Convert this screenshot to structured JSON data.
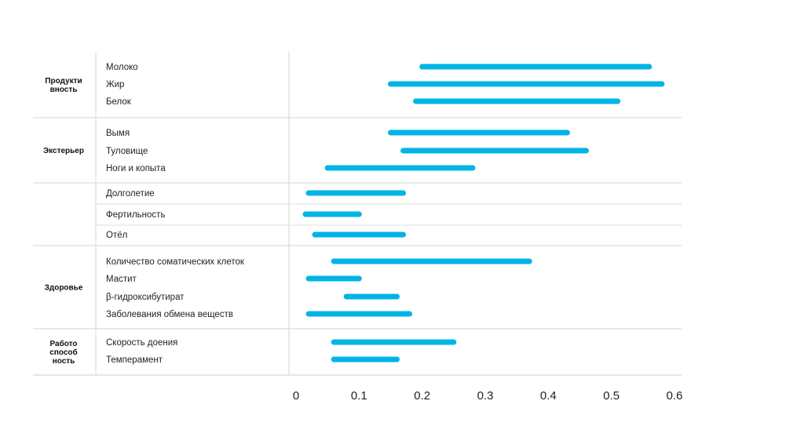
{
  "chart_data": {
    "type": "bar",
    "subtype": "floating-range",
    "title": "",
    "xlabel": "",
    "ylabel": "",
    "xlim": [
      0,
      0.6
    ],
    "xticks": [
      "0",
      "0.1",
      "0.2",
      "0.3",
      "0.4",
      "0.5",
      "0.6"
    ],
    "bar_color": "#00b4e6",
    "grid": false,
    "groups": [
      {
        "label_lines": [
          "Продукти",
          "вность"
        ],
        "items": [
          {
            "label": "Молоко",
            "low": 0.2,
            "high": 0.56
          },
          {
            "label": "Жир",
            "low": 0.15,
            "high": 0.58
          },
          {
            "label": "Белок",
            "low": 0.19,
            "high": 0.51
          }
        ]
      },
      {
        "label_lines": [
          "Экстерьер"
        ],
        "items": [
          {
            "label": "Вымя",
            "low": 0.15,
            "high": 0.43
          },
          {
            "label": "Туловище",
            "low": 0.17,
            "high": 0.46
          },
          {
            "label": "Ноги и копыта",
            "low": 0.05,
            "high": 0.28
          }
        ]
      },
      {
        "label_lines": [],
        "items": [
          {
            "label": "Долголетие",
            "low": 0.02,
            "high": 0.17
          },
          {
            "label": "Фертильность",
            "low": 0.015,
            "high": 0.1
          },
          {
            "label": "Отёл",
            "low": 0.03,
            "high": 0.17
          }
        ]
      },
      {
        "label_lines": [
          "Здоровье"
        ],
        "items": [
          {
            "label": "Количество соматических клеток",
            "low": 0.06,
            "high": 0.37
          },
          {
            "label": "Мастит",
            "low": 0.02,
            "high": 0.1
          },
          {
            "label": "β-гидроксибутират",
            "low": 0.08,
            "high": 0.16
          },
          {
            "label": "Заболевания обмена веществ",
            "low": 0.02,
            "high": 0.18
          }
        ]
      },
      {
        "label_lines": [
          "Работо",
          "способ",
          "ность"
        ],
        "items": [
          {
            "label": "Скорость доения",
            "low": 0.06,
            "high": 0.25
          },
          {
            "label": "Темперамент",
            "low": 0.06,
            "high": 0.16
          }
        ]
      }
    ]
  }
}
